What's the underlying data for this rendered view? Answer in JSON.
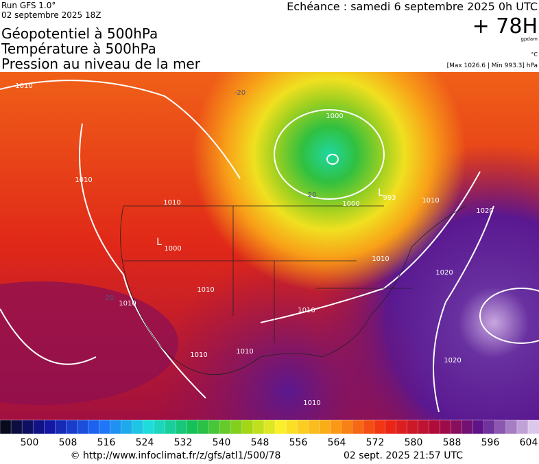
{
  "header": {
    "run": "Run GFS 1.0°",
    "run_date": "02 septembre 2025 18Z",
    "titles": [
      "Géopotentiel à 500hPa",
      "Température à 500hPa",
      "Pression au niveau de la mer"
    ],
    "echeance": "Echéance : samedi 6 septembre 2025 0h UTC",
    "lead": "+ 78H",
    "unit_geo": "gpdam",
    "unit_temp": "°C",
    "pressure_range": "[Max 1026.6 | Min 993.3] hPa"
  },
  "map": {
    "labels": [
      "1010",
      "-20",
      "1000",
      "20",
      "1000",
      "L",
      "993",
      "1010",
      "1020",
      "1010",
      "1010",
      "L",
      "1000",
      "1010",
      "1020",
      "1010",
      "1010",
      "1010",
      "1010",
      "1010",
      "1020",
      "1010",
      "20"
    ]
  },
  "colorbar": {
    "labels": [
      "500",
      "508",
      "516",
      "524",
      "532",
      "540",
      "548",
      "556",
      "564",
      "572",
      "580",
      "588",
      "596",
      "604"
    ]
  },
  "footer": {
    "url": "© http://www.infoclimat.fr/z/gfs/atl1/500/78",
    "timestamp": "02 sept. 2025 21:57 UTC"
  }
}
